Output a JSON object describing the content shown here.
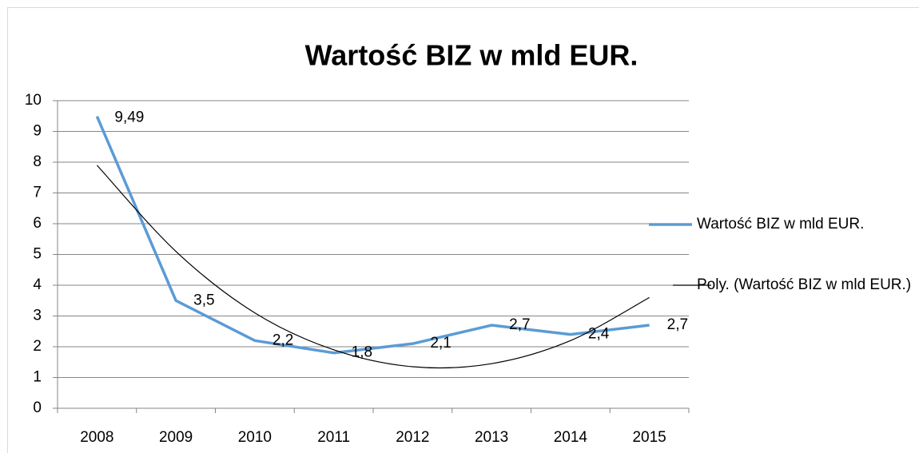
{
  "chart_data": {
    "type": "line",
    "title": "Wartość BIZ w mld EUR.",
    "categories": [
      "2008",
      "2009",
      "2010",
      "2011",
      "2012",
      "2013",
      "2014",
      "2015"
    ],
    "series": [
      {
        "name": "Wartość BIZ w mld EUR.",
        "color": "#5b9bd5",
        "values": [
          9.49,
          3.5,
          2.2,
          1.8,
          2.1,
          2.7,
          2.4,
          2.7
        ],
        "value_labels": [
          "9,49",
          "3,5",
          "2,2",
          "1,8",
          "2,1",
          "2,7",
          "2,4",
          "2,7"
        ]
      },
      {
        "name": "Poly. (Wartość BIZ w mld EUR.)",
        "color": "#000000",
        "values": [
          7.9,
          5.1,
          3.1,
          1.9,
          1.35,
          1.45,
          2.2,
          3.6
        ]
      }
    ],
    "ylim": [
      0,
      10
    ],
    "yticks": [
      0,
      1,
      2,
      3,
      4,
      5,
      6,
      7,
      8,
      9,
      10
    ],
    "grid": true,
    "legend": "right"
  }
}
